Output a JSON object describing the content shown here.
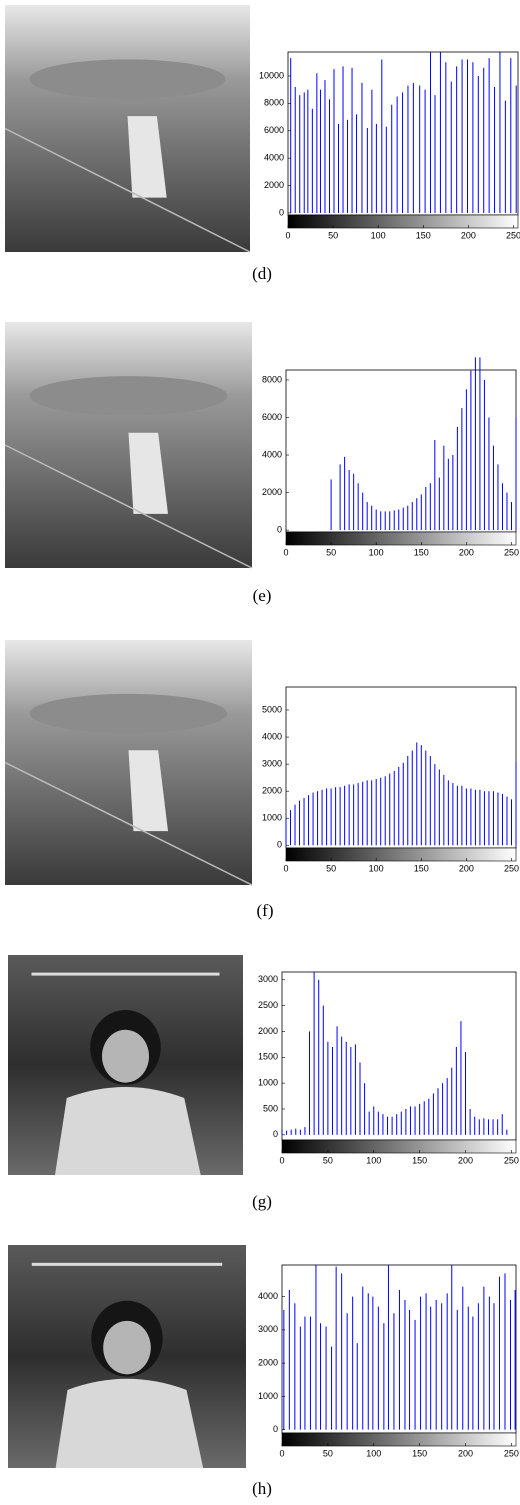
{
  "chart_data": [
    {
      "type": "bar",
      "label": "(d)",
      "color": "#0000ff",
      "xlim": [
        0,
        255
      ],
      "ylim": [
        -150,
        11750
      ],
      "xticks": [
        0,
        50,
        100,
        150,
        200,
        250
      ],
      "yticks": [
        0,
        2000,
        4000,
        6000,
        8000,
        10000
      ],
      "x": [
        3,
        8,
        13,
        18,
        22,
        27,
        32,
        36,
        41,
        46,
        51,
        56,
        61,
        66,
        71,
        76,
        82,
        88,
        93,
        98,
        104,
        109,
        115,
        121,
        127,
        133,
        139,
        146,
        152,
        158,
        163,
        169,
        175,
        181,
        187,
        193,
        199,
        205,
        211,
        217,
        223,
        229,
        235,
        241,
        247,
        253
      ],
      "values": [
        11300,
        9200,
        8600,
        8800,
        9000,
        7600,
        10200,
        9000,
        9700,
        8300,
        10500,
        6500,
        10700,
        6800,
        10600,
        7200,
        9500,
        6200,
        9000,
        6500,
        11200,
        6300,
        7900,
        8500,
        8800,
        9300,
        9500,
        9300,
        9000,
        11750,
        8600,
        11750,
        11000,
        9600,
        10700,
        11200,
        11200,
        11000,
        10000,
        10600,
        11300,
        9200,
        11750,
        8200,
        11300,
        9300
      ]
    },
    {
      "type": "bar",
      "label": "(e)",
      "color": "#0000ff",
      "xlim": [
        0,
        255
      ],
      "ylim": [
        -100,
        8530
      ],
      "xticks": [
        0,
        50,
        100,
        150,
        200,
        250
      ],
      "yticks": [
        0,
        2000,
        4000,
        6000,
        8000
      ],
      "x": [
        0,
        5,
        10,
        15,
        20,
        25,
        30,
        35,
        40,
        45,
        50,
        55,
        60,
        65,
        70,
        75,
        80,
        85,
        90,
        95,
        100,
        105,
        110,
        115,
        120,
        125,
        130,
        135,
        140,
        145,
        150,
        155,
        160,
        165,
        170,
        175,
        180,
        185,
        190,
        195,
        200,
        205,
        210,
        215,
        220,
        225,
        230,
        235,
        240,
        245,
        250,
        255
      ],
      "values": [
        0,
        0,
        0,
        0,
        0,
        0,
        0,
        0,
        0,
        0,
        2700,
        0,
        3500,
        3900,
        3200,
        3000,
        2500,
        2000,
        1500,
        1300,
        1100,
        1000,
        1000,
        1000,
        1050,
        1100,
        1200,
        1300,
        1500,
        1700,
        1900,
        2300,
        2500,
        4800,
        2800,
        4500,
        3800,
        4000,
        5500,
        6500,
        7500,
        8500,
        9200,
        9200,
        8000,
        6000,
        4500,
        3500,
        2500,
        2000,
        1500,
        6000
      ]
    },
    {
      "type": "bar",
      "label": "(f)",
      "color": "#0000ff",
      "xlim": [
        0,
        255
      ],
      "ylim": [
        -100,
        5850
      ],
      "xticks": [
        0,
        50,
        100,
        150,
        200,
        250
      ],
      "yticks": [
        0,
        1000,
        2000,
        3000,
        4000,
        5000
      ],
      "x": [
        0,
        5,
        10,
        15,
        20,
        25,
        30,
        35,
        40,
        45,
        50,
        55,
        60,
        65,
        70,
        75,
        80,
        85,
        90,
        95,
        100,
        105,
        110,
        115,
        120,
        125,
        130,
        135,
        140,
        145,
        150,
        155,
        160,
        165,
        170,
        175,
        180,
        185,
        190,
        195,
        200,
        205,
        210,
        215,
        220,
        225,
        230,
        235,
        240,
        245,
        250,
        255
      ],
      "values": [
        1000,
        1300,
        1500,
        1650,
        1750,
        1850,
        1950,
        2000,
        2050,
        2100,
        2100,
        2150,
        2150,
        2200,
        2250,
        2250,
        2300,
        2350,
        2400,
        2400,
        2450,
        2500,
        2550,
        2650,
        2750,
        2900,
        3050,
        3300,
        3500,
        3800,
        3700,
        3500,
        3300,
        3000,
        2800,
        2600,
        2400,
        2300,
        2200,
        2200,
        2100,
        2100,
        2050,
        2050,
        2000,
        2000,
        2000,
        1950,
        1900,
        1800,
        1700,
        3100
      ]
    },
    {
      "type": "bar",
      "label": "(g)",
      "color": "#0000ff",
      "xlim": [
        0,
        255
      ],
      "ylim": [
        -100,
        3150
      ],
      "xticks": [
        0,
        50,
        100,
        150,
        200,
        250
      ],
      "yticks": [
        0,
        500,
        1000,
        1500,
        2000,
        2500,
        3000
      ],
      "x": [
        0,
        5,
        10,
        15,
        20,
        25,
        30,
        35,
        40,
        45,
        50,
        55,
        60,
        65,
        70,
        75,
        80,
        85,
        90,
        95,
        100,
        105,
        110,
        115,
        120,
        125,
        130,
        135,
        140,
        145,
        150,
        155,
        160,
        165,
        170,
        175,
        180,
        185,
        190,
        195,
        200,
        205,
        210,
        215,
        220,
        225,
        230,
        235,
        240,
        245,
        250,
        255
      ],
      "values": [
        100,
        80,
        100,
        120,
        100,
        150,
        2000,
        3150,
        3000,
        2500,
        1800,
        1700,
        2100,
        1900,
        1800,
        1700,
        1750,
        1400,
        1000,
        450,
        550,
        450,
        400,
        350,
        350,
        400,
        450,
        500,
        550,
        550,
        600,
        650,
        700,
        800,
        900,
        1000,
        1100,
        1300,
        1700,
        2200,
        1600,
        500,
        350,
        300,
        320,
        300,
        300,
        300,
        400,
        100,
        0,
        0
      ]
    },
    {
      "type": "bar",
      "label": "(h)",
      "color": "#0000ff",
      "xlim": [
        0,
        255
      ],
      "ylim": [
        -100,
        4950
      ],
      "xticks": [
        0,
        50,
        100,
        150,
        200,
        250
      ],
      "yticks": [
        0,
        1000,
        2000,
        3000,
        4000
      ],
      "x": [
        2,
        8,
        14,
        20,
        25,
        31,
        37,
        42,
        48,
        54,
        59,
        65,
        71,
        77,
        82,
        88,
        94,
        99,
        105,
        111,
        116,
        122,
        128,
        134,
        139,
        145,
        151,
        157,
        162,
        168,
        174,
        180,
        185,
        191,
        197,
        203,
        208,
        214,
        220,
        226,
        231,
        237,
        243,
        249,
        254
      ],
      "values": [
        3600,
        4200,
        3800,
        3100,
        3400,
        3400,
        4950,
        3200,
        3100,
        2500,
        4900,
        4700,
        3500,
        4000,
        2600,
        4300,
        4100,
        4000,
        3700,
        3200,
        4950,
        3500,
        4200,
        3900,
        3600,
        3300,
        4000,
        4100,
        3700,
        3900,
        3800,
        4100,
        4950,
        3600,
        4300,
        3700,
        3400,
        3800,
        4300,
        4000,
        3800,
        4600,
        4700,
        3900,
        4200
      ]
    }
  ]
}
